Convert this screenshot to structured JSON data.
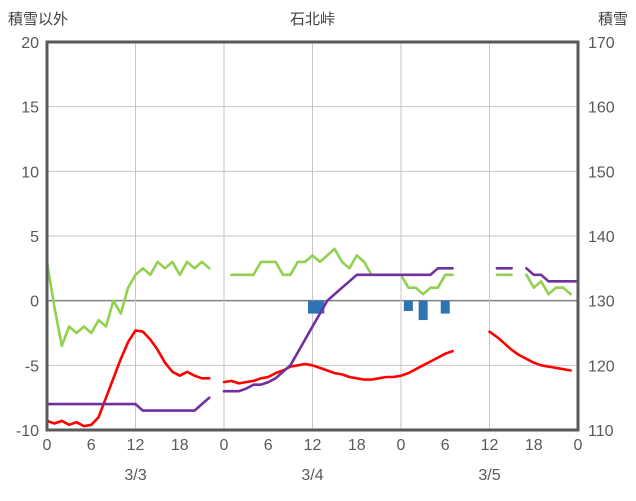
{
  "header": {
    "left_axis_title": "積雪以外",
    "title": "石北峠",
    "right_axis_title": "積雪"
  },
  "chart_data": {
    "type": "line",
    "title": "石北峠",
    "left_axis": {
      "label": "積雪以外",
      "min": -10,
      "max": 20,
      "ticks": [
        20,
        15,
        10,
        5,
        0,
        -5,
        -10
      ]
    },
    "right_axis": {
      "label": "積雪",
      "min": 110,
      "max": 170,
      "ticks": [
        170,
        160,
        150,
        140,
        130,
        120,
        110
      ]
    },
    "x_axis": {
      "min": 0,
      "max": 72,
      "hours_per_point": 1,
      "tick_interval": 6,
      "grid_interval": 12,
      "tick_labels": [
        "0",
        "6",
        "12",
        "18",
        "0",
        "6",
        "12",
        "18",
        "0",
        "6",
        "12",
        "18",
        "0"
      ],
      "day_labels": [
        "3/3",
        "3/4",
        "3/5"
      ]
    },
    "grid": {
      "on": true,
      "line_color": "#c6c6c6",
      "zero_line_color": "#808080",
      "frame_color": "#595959"
    },
    "legend": {
      "position": "none"
    },
    "series": [
      {
        "name": "green_line",
        "type": "line",
        "axis": "left",
        "color": "#92d050",
        "values": [
          3,
          -0.5,
          -3.5,
          -2,
          -2.5,
          -2,
          -2.5,
          -1.5,
          -2,
          0,
          -1,
          1,
          2,
          2.5,
          2,
          3,
          2.5,
          3,
          2,
          3,
          2.5,
          3,
          2.5,
          null,
          null,
          2,
          2,
          2,
          2,
          3,
          3,
          3,
          2,
          2,
          3,
          3,
          3.5,
          3,
          3.5,
          4,
          3,
          2.5,
          3.5,
          3,
          2,
          2,
          2,
          2,
          2,
          1,
          1,
          0.5,
          1,
          1,
          2,
          2,
          null,
          null,
          null,
          null,
          null,
          2,
          2,
          2,
          null,
          2,
          1,
          1.5,
          0.5,
          1,
          1,
          0.5
        ]
      },
      {
        "name": "red_line",
        "type": "line",
        "axis": "left",
        "color": "#ff0000",
        "values": [
          -9.3,
          -9.5,
          -9.3,
          -9.6,
          -9.4,
          -9.7,
          -9.6,
          -9.0,
          -7.5,
          -6.0,
          -4.5,
          -3.2,
          -2.3,
          -2.4,
          -3.0,
          -3.8,
          -4.8,
          -5.5,
          -5.8,
          -5.5,
          -5.8,
          -6.0,
          -6.0,
          null,
          -6.3,
          -6.2,
          -6.4,
          -6.3,
          -6.2,
          -6.0,
          -5.9,
          -5.6,
          -5.4,
          -5.1,
          -5.0,
          -4.9,
          -5.0,
          -5.2,
          -5.4,
          -5.6,
          -5.7,
          -5.9,
          -6.0,
          -6.1,
          -6.1,
          -6.0,
          -5.9,
          -5.9,
          -5.8,
          -5.6,
          -5.3,
          -5.0,
          -4.7,
          -4.4,
          -4.1,
          -3.9,
          null,
          null,
          null,
          null,
          -2.4,
          -2.8,
          -3.3,
          -3.8,
          -4.2,
          -4.5,
          -4.8,
          -5.0,
          -5.1,
          -5.2,
          -5.3,
          -5.4
        ]
      },
      {
        "name": "purple_line",
        "type": "line",
        "axis": "left",
        "color": "#7030a0",
        "values": [
          -8,
          -8,
          -8,
          -8,
          -8,
          -8,
          -8,
          -8,
          -8,
          -8,
          -8,
          -8,
          -8,
          -8.5,
          -8.5,
          -8.5,
          -8.5,
          -8.5,
          -8.5,
          -8.5,
          -8.5,
          -8,
          -7.5,
          null,
          -7,
          -7,
          -7,
          -6.8,
          -6.5,
          -6.5,
          -6.3,
          -6,
          -5.5,
          -5,
          -4,
          -3,
          -2,
          -1,
          0,
          0.5,
          1,
          1.5,
          2,
          2,
          2,
          2,
          2,
          2,
          2,
          2,
          2,
          2,
          2,
          2.5,
          2.5,
          2.5,
          null,
          null,
          null,
          null,
          null,
          2.5,
          2.5,
          2.5,
          null,
          2.5,
          2,
          2,
          1.5,
          1.5,
          1.5,
          1.5,
          1.5
        ]
      },
      {
        "name": "blue_bars",
        "type": "bar",
        "axis": "left",
        "color": "#2e74b5",
        "points": [
          [
            36,
            -1.0
          ],
          [
            37,
            -1.0
          ],
          [
            49,
            -0.8
          ],
          [
            51,
            -1.5
          ],
          [
            54,
            -1.0
          ]
        ]
      }
    ]
  }
}
